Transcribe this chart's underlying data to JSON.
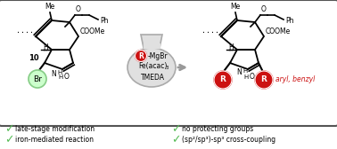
{
  "bg_color": "#ffffff",
  "border_color": "#555555",
  "checkmark_color": "#55bb55",
  "red_color": "#cc1111",
  "green_fill": "#ccffcc",
  "green_border": "#88cc88",
  "flask_fill": "#e0e0e0",
  "flask_border": "#aaaaaa",
  "bullet_left": [
    "late-stage modification",
    "iron-mediated reaction"
  ],
  "bullet_right": [
    "no protecting groups",
    "(sp²/sp³)-sp³ cross-coupling"
  ],
  "figsize": [
    3.78,
    1.68
  ],
  "dpi": 100
}
